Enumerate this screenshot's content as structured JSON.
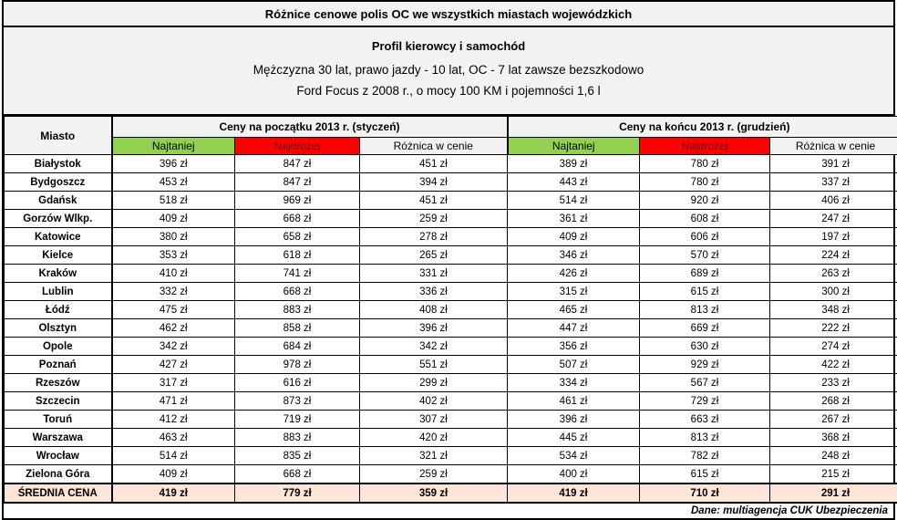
{
  "title": "Różnice cenowe polis OC we wszystkich miastach wojewódzkich",
  "profile": {
    "heading": "Profil kierowcy i samochód",
    "driver_line": "Mężczyzna 30 lat, prawo jazdy - 10 lat, OC - 7 lat zawsze bezszkodowo",
    "car_line": "Ford Focus z 2008 r., o mocy 100 KM i pojemności  1,6 l"
  },
  "footer": {
    "source": "Dane: multiagencja CUK Ubezpieczenia"
  },
  "colors": {
    "cheapest_header_bg": "#92d050",
    "most_expensive_header_bg": "#ff0000",
    "most_expensive_header_text": "#6b1111",
    "summary_row_bg": "#fce4d6",
    "header_surface_bg": "#f2f2f2",
    "border": "#000000"
  },
  "chart_data": {
    "type": "table",
    "title": "Różnice cenowe polis OC we wszystkich miastach wojewódzkich",
    "unit": "zł",
    "city_header": "Miasto",
    "groups": [
      "Ceny na początku 2013 r. (styczeń)",
      "Ceny na końcu 2013 r. (grudzień)"
    ],
    "sub_headers": [
      "Najtaniej",
      "Najdrożej",
      "Różnica w cenie"
    ],
    "columns": [
      "Miasto",
      "styczeń Najtaniej",
      "styczeń Najdrożej",
      "styczeń Różnica w cenie",
      "grudzień Najtaniej",
      "grudzień Najdrożej",
      "grudzień Różnica w cenie"
    ],
    "rows": [
      {
        "city": "Białystok",
        "values": [
          396,
          847,
          451,
          389,
          780,
          391
        ]
      },
      {
        "city": "Bydgoszcz",
        "values": [
          453,
          847,
          394,
          443,
          780,
          337
        ]
      },
      {
        "city": "Gdańsk",
        "values": [
          518,
          969,
          451,
          514,
          920,
          406
        ]
      },
      {
        "city": "Gorzów Wlkp.",
        "values": [
          409,
          668,
          259,
          361,
          608,
          247
        ]
      },
      {
        "city": "Katowice",
        "values": [
          380,
          658,
          278,
          409,
          606,
          197
        ]
      },
      {
        "city": "Kielce",
        "values": [
          353,
          618,
          265,
          346,
          570,
          224
        ]
      },
      {
        "city": "Kraków",
        "values": [
          410,
          741,
          331,
          426,
          689,
          263
        ]
      },
      {
        "city": "Lublin",
        "values": [
          332,
          668,
          336,
          315,
          615,
          300
        ]
      },
      {
        "city": "Łódź",
        "values": [
          475,
          883,
          408,
          465,
          813,
          348
        ]
      },
      {
        "city": "Olsztyn",
        "values": [
          462,
          858,
          396,
          447,
          669,
          222
        ]
      },
      {
        "city": "Opole",
        "values": [
          342,
          684,
          342,
          356,
          630,
          274
        ]
      },
      {
        "city": "Poznań",
        "values": [
          427,
          978,
          551,
          507,
          929,
          422
        ]
      },
      {
        "city": "Rzeszów",
        "values": [
          317,
          616,
          299,
          334,
          567,
          233
        ]
      },
      {
        "city": "Szczecin",
        "values": [
          471,
          873,
          402,
          461,
          729,
          268
        ]
      },
      {
        "city": "Toruń",
        "values": [
          412,
          719,
          307,
          396,
          663,
          267
        ]
      },
      {
        "city": "Warszawa",
        "values": [
          463,
          883,
          420,
          445,
          813,
          368
        ]
      },
      {
        "city": "Wrocław",
        "values": [
          514,
          835,
          321,
          534,
          782,
          248
        ]
      },
      {
        "city": "Zielona Góra",
        "values": [
          409,
          668,
          259,
          400,
          615,
          215
        ]
      }
    ],
    "summary": {
      "label": "ŚREDNIA CENA",
      "values": [
        419,
        779,
        359,
        419,
        710,
        291
      ]
    }
  }
}
